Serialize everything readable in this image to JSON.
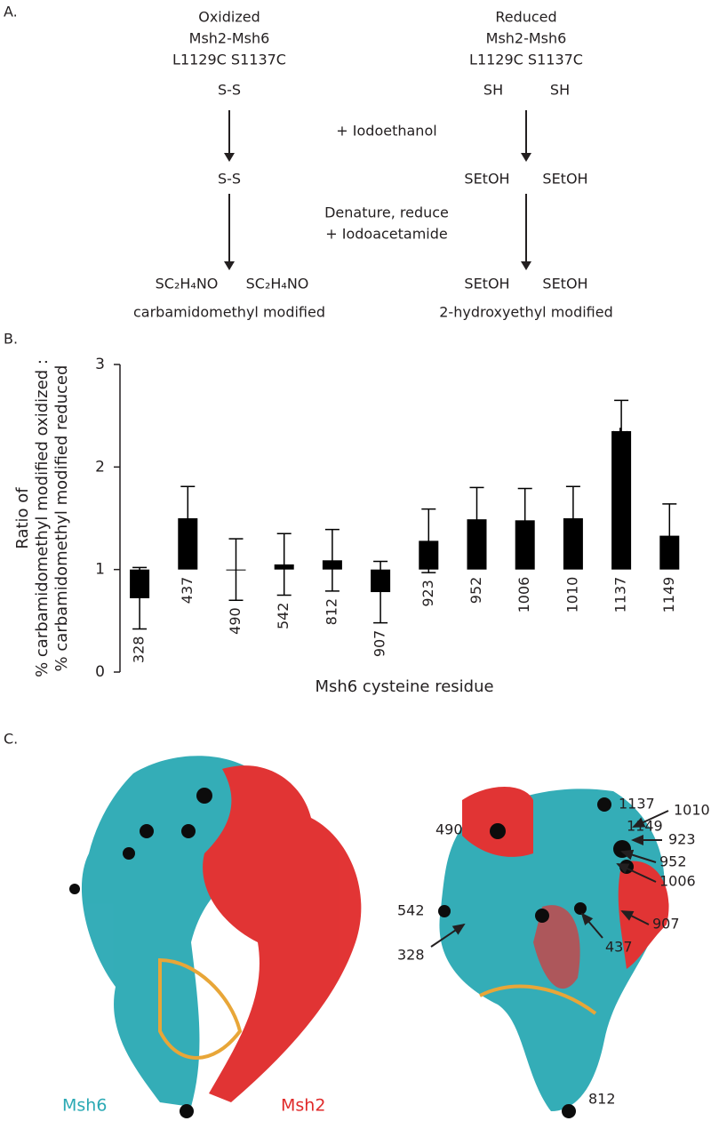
{
  "panel_a": {
    "label": "A.",
    "oxidized": {
      "lines": [
        "Oxidized",
        "Msh2-Msh6",
        "L1129C S1137C"
      ],
      "state1": "S-S",
      "state2": "S-S",
      "state3": [
        "SC₂H₄NO",
        "SC₂H₄NO"
      ],
      "caption": "carbamidomethyl modified"
    },
    "reduced": {
      "lines": [
        "Reduced",
        "Msh2-Msh6",
        "L1129C S1137C"
      ],
      "state1": [
        "SH",
        "SH"
      ],
      "state2": [
        "SEtOH",
        "SEtOH"
      ],
      "state3": [
        "SEtOH",
        "SEtOH"
      ],
      "caption": "2-hydroxyethyl modified"
    },
    "steps": [
      "+ Iodoethanol",
      "Denature, reduce",
      "+ Iodoacetamide"
    ]
  },
  "chart_data": {
    "type": "bar",
    "panel_label": "B.",
    "y_label": [
      "Ratio of",
      "% carbamidomethyl modified oxidized :",
      "% carbamidomethyl modified reduced"
    ],
    "x_label": "Msh6 cysteine residue",
    "categories": [
      "328",
      "437",
      "490",
      "542",
      "812",
      "907",
      "923",
      "952",
      "1006",
      "1010",
      "1137",
      "1149"
    ],
    "values": [
      0.72,
      1.5,
      1.0,
      1.05,
      1.09,
      0.78,
      1.28,
      1.49,
      1.48,
      1.5,
      2.35,
      1.33
    ],
    "errors": [
      0.3,
      0.31,
      0.3,
      0.3,
      0.3,
      0.3,
      0.31,
      0.31,
      0.31,
      0.31,
      0.3,
      0.31
    ],
    "baseline": 1,
    "color": "#000000",
    "ylim": [
      0,
      3
    ],
    "yticks": [
      0,
      1,
      2,
      3
    ],
    "annotation": "*"
  },
  "panel_c": {
    "label": "C.",
    "chains": [
      "Msh6",
      "Msh2"
    ],
    "residues": [
      "1137",
      "1149",
      "490",
      "1010",
      "923",
      "952",
      "1006",
      "542",
      "907",
      "328",
      "437",
      "812"
    ]
  }
}
